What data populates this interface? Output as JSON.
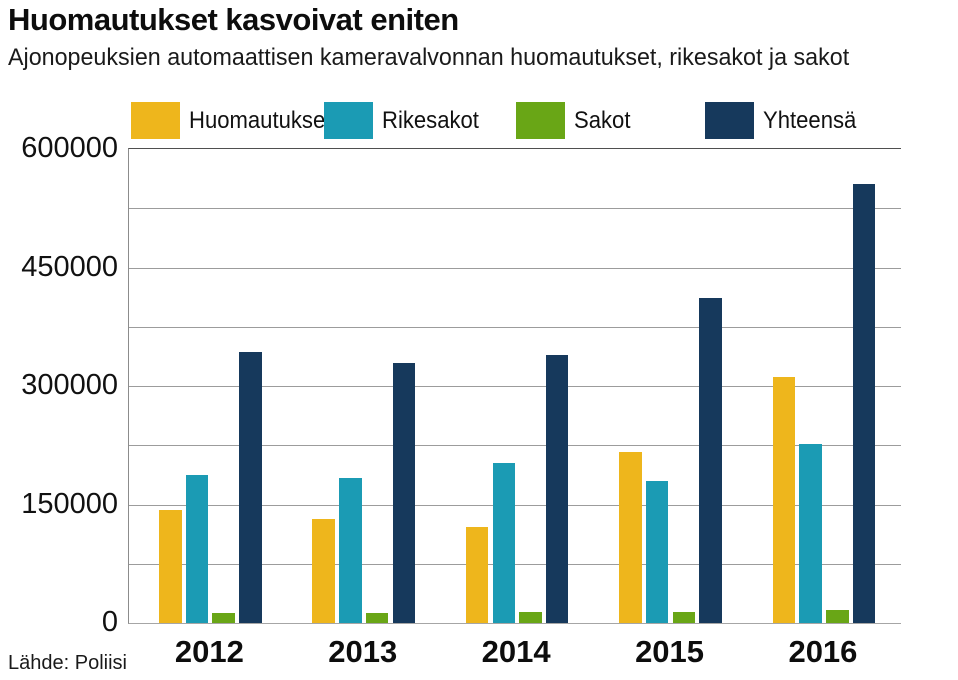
{
  "header": {
    "title": "Huomautukset kasvoivat eniten",
    "subtitle": "Ajonopeuksien automaattisen kameravalvonnan huomautukset, rikesakot ja sakot"
  },
  "source": "Lähde: Poliisi",
  "colors": {
    "huomautukset": "#eeb61c",
    "rikesakot": "#1b9bb4",
    "sakot": "#69a616",
    "yhteensa": "#16395c",
    "gridline": "#9c9c9c",
    "axis_top": "#4f4f4f",
    "axis_left": "#8c8c8c",
    "axis_bottom": "#a6a6a6"
  },
  "chart_data": {
    "type": "bar",
    "title": "Huomautukset kasvoivat eniten",
    "subtitle": "Ajonopeuksien automaattisen kameravalvonnan huomautukset, rikesakot ja sakot",
    "categories": [
      "2012",
      "2013",
      "2014",
      "2015",
      "2016"
    ],
    "series": [
      {
        "name": "Huomautukset",
        "color_key": "huomautukset",
        "values": [
          143000,
          132000,
          122000,
          217000,
          312000
        ]
      },
      {
        "name": "Rikesakot",
        "color_key": "rikesakot",
        "values": [
          187000,
          184000,
          203000,
          180000,
          227000
        ]
      },
      {
        "name": "Sakot",
        "color_key": "sakot",
        "values": [
          13000,
          13000,
          14000,
          14000,
          17000
        ]
      },
      {
        "name": "Yhteensä",
        "color_key": "yhteensa",
        "values": [
          343000,
          329000,
          339000,
          411000,
          556000
        ]
      }
    ],
    "xlabel": "",
    "ylabel": "",
    "ylim": [
      0,
      600000
    ],
    "ytick_values": [
      0,
      150000,
      300000,
      450000,
      600000
    ],
    "ytick_labels": [
      "0",
      "150000",
      "300000",
      "450000",
      "600000"
    ],
    "gridline_step": 75000,
    "grid": true,
    "legend_position": "top",
    "source": "Lähde: Poliisi"
  }
}
